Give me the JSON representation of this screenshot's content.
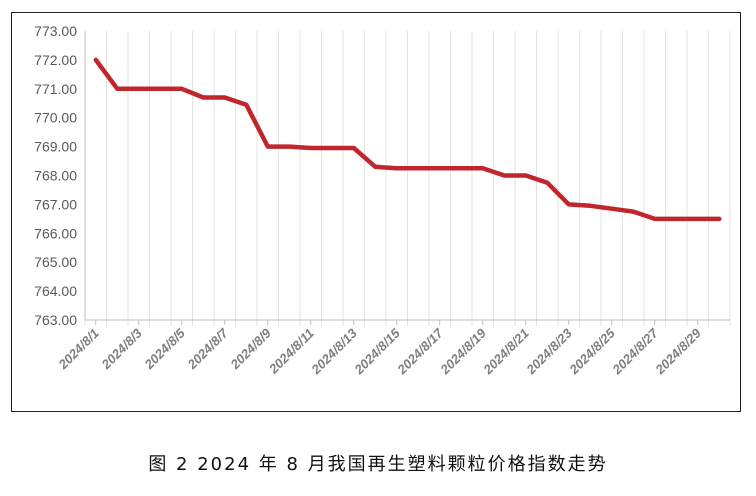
{
  "caption": "图 2  2024 年 8 月我国再生塑料颗粒价格指数走势",
  "chart_data": {
    "type": "line",
    "title": "",
    "xlabel": "",
    "ylabel": "",
    "ylim": [
      763,
      773
    ],
    "yticks": [
      "763.00",
      "764.00",
      "765.00",
      "766.00",
      "767.00",
      "768.00",
      "769.00",
      "770.00",
      "771.00",
      "772.00",
      "773.00"
    ],
    "xticks": [
      "2024/8/1",
      "2024/8/3",
      "2024/8/5",
      "2024/8/7",
      "2024/8/9",
      "2024/8/11",
      "2024/8/13",
      "2024/8/15",
      "2024/8/17",
      "2024/8/19",
      "2024/8/21",
      "2024/8/23",
      "2024/8/25",
      "2024/8/27",
      "2024/8/29"
    ],
    "grid": "vertical",
    "series": [
      {
        "color": "#c0272d",
        "x": [
          "2024/8/1",
          "2024/8/2",
          "2024/8/3",
          "2024/8/4",
          "2024/8/5",
          "2024/8/6",
          "2024/8/7",
          "2024/8/8",
          "2024/8/9",
          "2024/8/10",
          "2024/8/11",
          "2024/8/12",
          "2024/8/13",
          "2024/8/14",
          "2024/8/15",
          "2024/8/16",
          "2024/8/17",
          "2024/8/18",
          "2024/8/19",
          "2024/8/20",
          "2024/8/21",
          "2024/8/22",
          "2024/8/23",
          "2024/8/24",
          "2024/8/25",
          "2024/8/26",
          "2024/8/27",
          "2024/8/28",
          "2024/8/29",
          "2024/8/30"
        ],
        "values": [
          772.0,
          771.0,
          771.0,
          771.0,
          771.0,
          770.7,
          770.7,
          770.45,
          769.0,
          769.0,
          768.95,
          768.95,
          768.95,
          768.3,
          768.25,
          768.25,
          768.25,
          768.25,
          768.25,
          768.0,
          768.0,
          767.75,
          767.0,
          766.95,
          766.85,
          766.75,
          766.5,
          766.5,
          766.5,
          766.5
        ]
      }
    ]
  }
}
